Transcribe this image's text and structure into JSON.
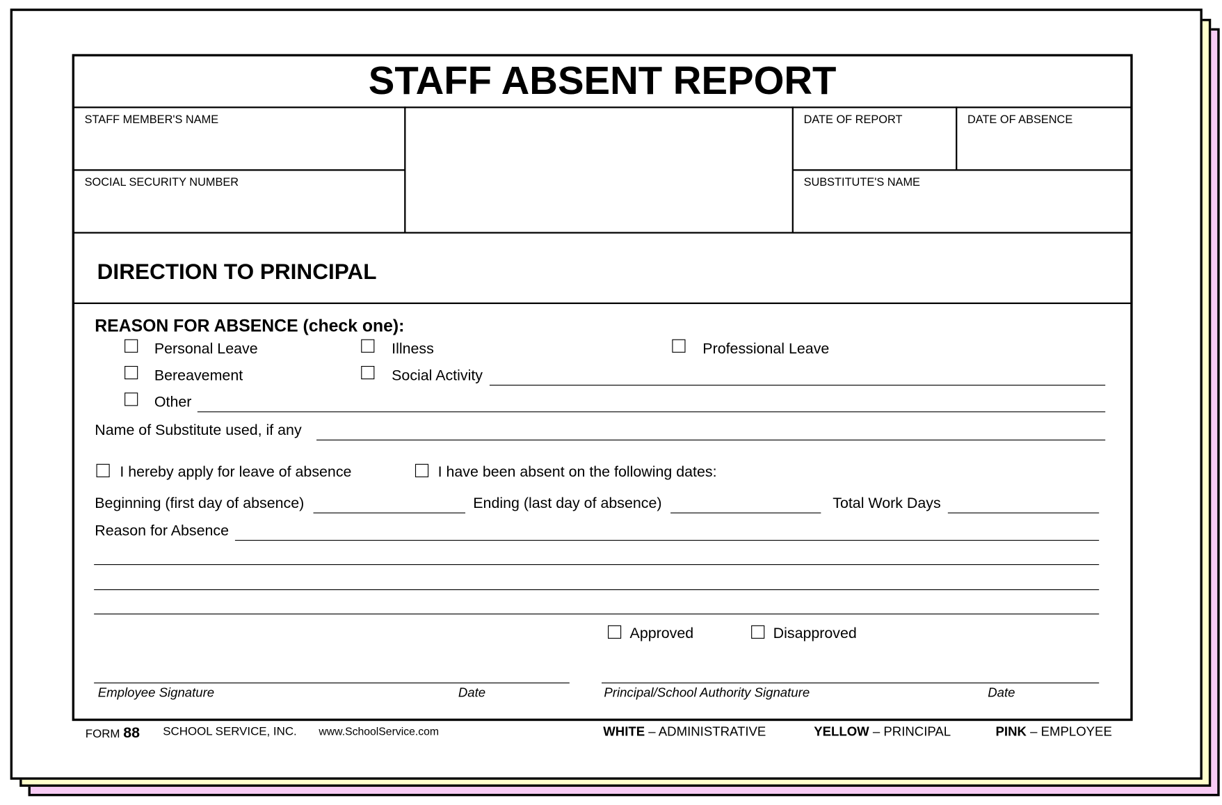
{
  "colors": {
    "white": "#ffffff",
    "yellow": "#ffffcc",
    "pink": "#f9ccf5"
  },
  "title": "STAFF ABSENT REPORT",
  "fields": {
    "staff_name": "STAFF MEMBER'S NAME",
    "ssn": "SOCIAL SECURITY NUMBER",
    "date_of_report": "DATE OF REPORT",
    "date_of_absence": "DATE OF ABSENCE",
    "substitute_name": "SUBSTITUTE'S NAME"
  },
  "direction": "DIRECTION TO PRINCIPAL",
  "reason_heading": "REASON FOR ABSENCE (check one):",
  "reasons": {
    "personal": "Personal Leave",
    "illness": "Illness",
    "professional": "Professional Leave",
    "bereavement": "Bereavement",
    "social": "Social Activity",
    "other": "Other"
  },
  "substitute_used": "Name of Substitute used, if any",
  "apply_leave": "I hereby apply for leave of absence",
  "been_absent": "I have been absent on the following dates:",
  "beginning": "Beginning (first day of absence)",
  "ending": "Ending (last day of absence)",
  "total_days": "Total Work Days",
  "reason_for_absence": "Reason for Absence",
  "approved": "Approved",
  "disapproved": "Disapproved",
  "signatures": {
    "employee": "Employee Signature",
    "employee_date": "Date",
    "principal": "Principal/School Authority Signature",
    "principal_date": "Date"
  },
  "footer": {
    "form_label": "FORM",
    "form_number": "88",
    "company": "SCHOOL SERVICE, INC.",
    "website": "www.SchoolService.com",
    "white_label": "WHITE",
    "white_dest": "– ADMINISTRATIVE",
    "yellow_label": "YELLOW",
    "yellow_dest": "– PRINCIPAL",
    "pink_label": "PINK",
    "pink_dest": "– EMPLOYEE"
  }
}
